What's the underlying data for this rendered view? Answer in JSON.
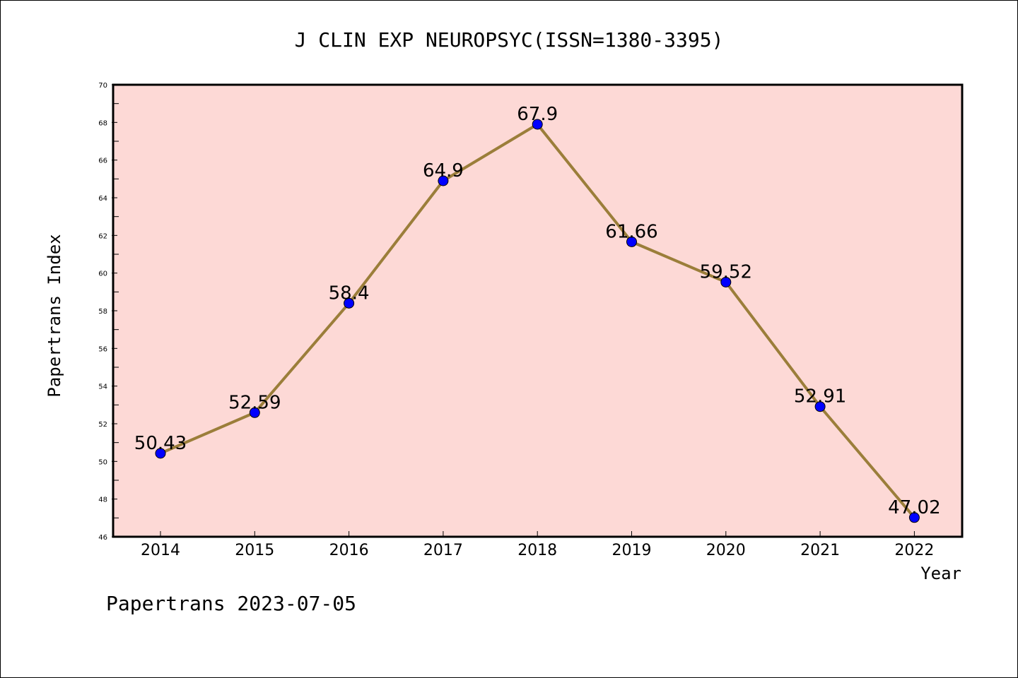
{
  "chart_data": {
    "type": "line",
    "title": "J CLIN EXP NEUROPSYC(ISSN=1380-3395)",
    "xlabel": "Year",
    "ylabel": "Papertrans Index",
    "footer": "Papertrans 2023-07-05",
    "categories": [
      "2014",
      "2015",
      "2016",
      "2017",
      "2018",
      "2019",
      "2020",
      "2021",
      "2022"
    ],
    "values": [
      50.43,
      52.59,
      58.4,
      64.9,
      67.9,
      61.66,
      59.52,
      52.91,
      47.02
    ],
    "data_labels": [
      "50.43",
      "52.59",
      "58.4",
      "64.9",
      "67.9",
      "61.66",
      "59.52",
      "52.91",
      "47.02"
    ],
    "ylim": [
      46,
      70
    ],
    "yticks": [
      "46",
      "48",
      "50",
      "52",
      "54",
      "56",
      "58",
      "60",
      "62",
      "64",
      "66",
      "68",
      "70"
    ],
    "grid": false,
    "legend": "none",
    "colors": {
      "plot_background": "#fdd9d6",
      "line": "#9b7e3a",
      "marker": "#0000ff",
      "axis": "#000000"
    }
  }
}
